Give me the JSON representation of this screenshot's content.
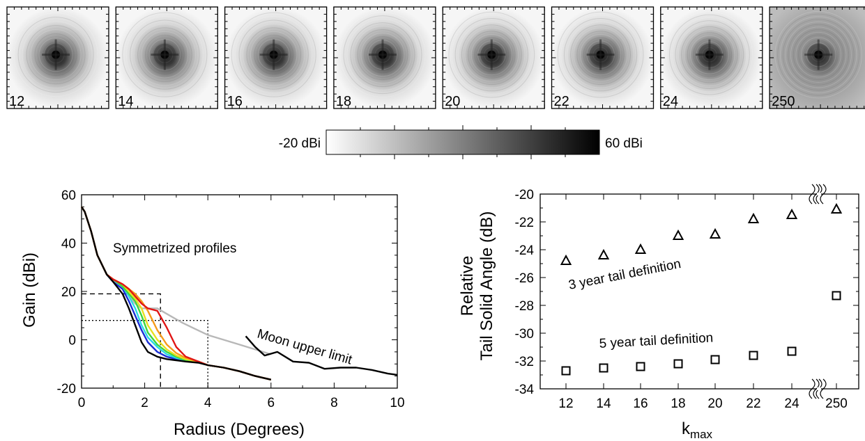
{
  "chart_data": [
    {
      "type": "heatmap",
      "panels": [
        {
          "label": "12",
          "kmax": 12
        },
        {
          "label": "14",
          "kmax": 14
        },
        {
          "label": "16",
          "kmax": 16
        },
        {
          "label": "18",
          "kmax": 18
        },
        {
          "label": "20",
          "kmax": 20
        },
        {
          "label": "22",
          "kmax": 22
        },
        {
          "label": "24",
          "kmax": 24
        },
        {
          "label": "250",
          "kmax": 250
        }
      ],
      "colorbar": {
        "min_label": "-20 dBi",
        "max_label": "60 dBi",
        "min": -20,
        "max": 60,
        "colormap": "white-to-black"
      }
    },
    {
      "type": "line",
      "xlabel": "Radius (Degrees)",
      "ylabel": "Gain (dBi)",
      "xlim": [
        0,
        10
      ],
      "ylim": [
        -20,
        60
      ],
      "xticks": [
        "0",
        "2",
        "4",
        "6",
        "8",
        "10"
      ],
      "yticks": [
        "-20",
        "0",
        "20",
        "40",
        "60"
      ],
      "annotations": {
        "profiles": "Symmetrized profiles",
        "moon": "Moon upper limit"
      },
      "series": [
        {
          "color": "#000000",
          "x": [
            0,
            0.1,
            0.3,
            0.5,
            0.8,
            1.0,
            1.3,
            1.5,
            1.7,
            1.9,
            2.1,
            2.4,
            2.7,
            3.0,
            3.3,
            3.7,
            4.0,
            4.5,
            5.0,
            5.5,
            6.0
          ],
          "y": [
            55,
            53,
            45,
            35,
            27,
            24,
            19,
            13,
            6,
            -1,
            -5,
            -7,
            -8,
            -8.5,
            -9,
            -9.5,
            -10.5,
            -11.5,
            -13,
            -15,
            -16.5
          ]
        },
        {
          "color": "#1a2fd6",
          "x": [
            0,
            0.1,
            0.3,
            0.5,
            0.8,
            1.0,
            1.3,
            1.5,
            1.7,
            1.9,
            2.1,
            2.4,
            2.7,
            3.0,
            3.3,
            3.7,
            4.0,
            4.5,
            5.0,
            5.5,
            6.0
          ],
          "y": [
            55,
            53,
            45,
            35,
            27,
            24,
            21,
            16,
            10,
            4,
            -1,
            -5,
            -7,
            -8,
            -8.5,
            -9,
            -10.5,
            -11.5,
            -13,
            -15,
            -16.5
          ]
        },
        {
          "color": "#2bd9e6",
          "x": [
            0,
            0.1,
            0.3,
            0.5,
            0.8,
            1.0,
            1.3,
            1.5,
            1.7,
            1.9,
            2.1,
            2.4,
            2.7,
            3.0,
            3.3,
            3.7,
            4.0,
            4.5,
            5.0,
            5.5,
            6.0
          ],
          "y": [
            55,
            53,
            45,
            35,
            27,
            25,
            22,
            18,
            13,
            6,
            1,
            -3,
            -6,
            -7.5,
            -8.5,
            -9,
            -10.5,
            -11.5,
            -13,
            -15,
            -16.5
          ]
        },
        {
          "color": "#3dd63d",
          "x": [
            0,
            0.1,
            0.3,
            0.5,
            0.8,
            1.0,
            1.3,
            1.5,
            1.7,
            1.9,
            2.1,
            2.4,
            2.7,
            3.0,
            3.3,
            3.7,
            4.0,
            4.5,
            5.0,
            5.5,
            6.0
          ],
          "y": [
            55,
            53,
            45,
            35,
            27,
            25,
            22,
            19,
            16,
            10,
            3,
            -2,
            -5,
            -7,
            -8.5,
            -9,
            -10.5,
            -11.5,
            -13,
            -15,
            -16.5
          ]
        },
        {
          "color": "#e8e01e",
          "x": [
            0,
            0.1,
            0.3,
            0.5,
            0.8,
            1.0,
            1.3,
            1.5,
            1.7,
            1.9,
            2.1,
            2.4,
            2.7,
            3.0,
            3.3,
            3.7,
            4.0,
            4.5,
            5.0,
            5.5,
            6.0
          ],
          "y": [
            55,
            53,
            45,
            35,
            27,
            25,
            23,
            20,
            17,
            13,
            6,
            0,
            -4,
            -6.5,
            -8,
            -9,
            -10.5,
            -11.5,
            -13,
            -15,
            -16.5
          ]
        },
        {
          "color": "#f59a1a",
          "x": [
            0,
            0.1,
            0.3,
            0.5,
            0.8,
            1.0,
            1.3,
            1.5,
            1.7,
            1.9,
            2.1,
            2.4,
            2.7,
            3.0,
            3.3,
            3.7,
            4.0,
            4.5,
            5.0,
            5.5,
            6.0
          ],
          "y": [
            55,
            53,
            45,
            35,
            27,
            25,
            23,
            21,
            19,
            16,
            12,
            4,
            -2,
            -5.5,
            -7.5,
            -9,
            -10.5,
            -11.5,
            -13,
            -15,
            -16.5
          ]
        },
        {
          "color": "#e01515",
          "x": [
            0,
            0.1,
            0.3,
            0.5,
            0.8,
            1.0,
            1.3,
            1.5,
            1.7,
            1.9,
            2.1,
            2.4,
            2.7,
            3.0,
            3.3,
            3.7,
            4.0,
            4.5,
            5.0,
            5.5,
            6.0
          ],
          "y": [
            55,
            53,
            45,
            35,
            27,
            25,
            23,
            21,
            18,
            15,
            13,
            12,
            5,
            -3,
            -7,
            -9,
            -10.5,
            -11.5,
            -13,
            -15,
            -16.5
          ]
        },
        {
          "color": "#b8b8b8",
          "x": [
            0,
            0.1,
            0.3,
            0.5,
            0.8,
            1.0,
            1.3,
            1.5,
            1.7,
            1.9,
            2.1,
            2.4,
            2.8,
            3.2,
            3.6,
            4.0,
            4.5,
            5.0,
            5.5,
            6.0
          ],
          "y": [
            55,
            53,
            45,
            35,
            27,
            25,
            22,
            18,
            15,
            13,
            13,
            13,
            10,
            7,
            4.5,
            2,
            0,
            -2,
            -4,
            -6
          ]
        },
        {
          "name": "Moon upper limit",
          "color": "#000000",
          "x": [
            5.2,
            5.5,
            5.8,
            6.2,
            6.7,
            7.2,
            7.7,
            8.2,
            8.7,
            9.2,
            9.7,
            10.0
          ],
          "y": [
            1.5,
            -3,
            -6.5,
            -5,
            -9,
            -9.5,
            -12,
            -11.5,
            -11.5,
            -12.5,
            -14,
            -14.5
          ]
        }
      ],
      "reference_boxes": [
        {
          "style": "dashed",
          "x": 2.5,
          "y": 19
        },
        {
          "style": "dotted",
          "x": 4.0,
          "y": 8
        }
      ]
    },
    {
      "type": "scatter",
      "xlabel": "kmax",
      "ylabel": [
        "Relative",
        "Tail Solid Angle (dB)"
      ],
      "categories": [
        "12",
        "14",
        "16",
        "18",
        "20",
        "22",
        "24",
        "250"
      ],
      "ylim": [
        -34,
        -20
      ],
      "yticks": [
        "-34",
        "-32",
        "-30",
        "-28",
        "-26",
        "-24",
        "-22",
        "-20"
      ],
      "axis_break": "between 24 and 250",
      "series": [
        {
          "name": "3 year tail definition",
          "marker": "triangle",
          "values": [
            -24.8,
            -24.4,
            -24.0,
            -23.0,
            -22.9,
            -21.8,
            -21.5,
            -21.1
          ]
        },
        {
          "name": "5 year tail definition",
          "marker": "square",
          "values": [
            -32.7,
            -32.5,
            -32.4,
            -32.2,
            -31.9,
            -31.6,
            -31.3,
            -27.3
          ]
        }
      ]
    }
  ]
}
